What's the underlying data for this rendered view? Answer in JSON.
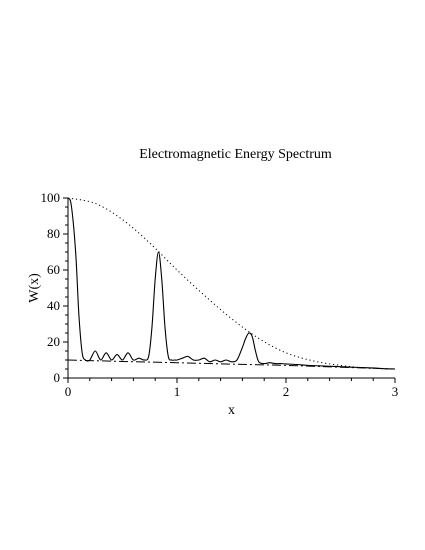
{
  "chart_data": {
    "type": "line",
    "title": "Electromagnetic Energy Spectrum",
    "xlabel": "x",
    "ylabel": "W(x)",
    "xlim": [
      0,
      3
    ],
    "ylim": [
      0,
      100
    ],
    "xticks": [
      "0",
      "1",
      "2",
      "3"
    ],
    "yticks": [
      "0",
      "20",
      "40",
      "60",
      "80",
      "100"
    ],
    "grid": false,
    "series": [
      {
        "style": "solid",
        "x": [
          0,
          0.03,
          0.07,
          0.1,
          0.13,
          0.16,
          0.2,
          0.25,
          0.3,
          0.35,
          0.4,
          0.45,
          0.5,
          0.55,
          0.6,
          0.65,
          0.7,
          0.74,
          0.77,
          0.8,
          0.83,
          0.86,
          0.89,
          0.92,
          0.95,
          0.98,
          1.0,
          1.05,
          1.1,
          1.15,
          1.2,
          1.25,
          1.3,
          1.35,
          1.4,
          1.45,
          1.5,
          1.55,
          1.6,
          1.63,
          1.66,
          1.69,
          1.72,
          1.75,
          1.8,
          1.85,
          1.9,
          1.95,
          2.0,
          2.1,
          2.2,
          2.3,
          2.4,
          2.5,
          2.6,
          2.7,
          2.8,
          2.9,
          3.0
        ],
        "y": [
          100,
          96,
          70,
          35,
          14,
          10,
          10,
          15,
          10,
          14,
          10,
          13,
          10,
          14,
          10,
          11,
          10,
          12,
          28,
          55,
          70,
          55,
          28,
          12,
          10,
          10,
          10,
          11,
          12,
          10,
          10,
          11,
          9,
          10,
          9,
          10,
          9,
          10,
          17,
          22,
          25,
          23,
          15,
          9,
          8,
          8.5,
          8,
          8,
          7.8,
          7.5,
          7,
          6.8,
          6.5,
          6.3,
          6,
          5.8,
          5.6,
          5.2,
          5
        ]
      },
      {
        "style": "dotted",
        "x": [
          0,
          0.25,
          0.5,
          0.75,
          1.0,
          1.25,
          1.5,
          1.75,
          2.0,
          2.25,
          2.5,
          2.75,
          3.0
        ],
        "y": [
          100,
          97,
          88,
          75,
          60,
          46,
          33,
          22,
          14,
          9.5,
          7,
          5.5,
          5
        ]
      },
      {
        "style": "dashdot",
        "x": [
          0,
          0.5,
          1.0,
          1.5,
          2.0,
          2.5,
          3.0
        ],
        "y": [
          10,
          9.2,
          8.5,
          7.7,
          7,
          6,
          5
        ]
      }
    ]
  }
}
